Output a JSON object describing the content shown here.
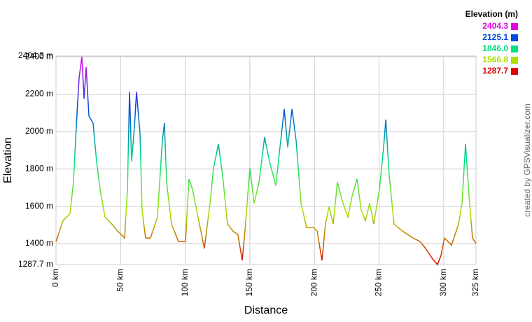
{
  "chart_data": {
    "type": "line",
    "x_label": "Distance",
    "y_label": "Elevation",
    "credit": "created by GPSVisualizer.com",
    "legend_title": "Elevation (m)",
    "color_scale": {
      "values": [
        2404.3,
        2125.1,
        {
          "value": 1846,
          "label": "1846.0"
        },
        1566.8,
        1287.7
      ],
      "colors": [
        "#e000e0",
        "#0048e0",
        "#00e080",
        "#a8e000",
        "#e00000"
      ]
    },
    "xlim": [
      0,
      325
    ],
    "ylim": [
      1287.7,
      2404.3
    ],
    "xticks": [
      {
        "value": 0,
        "label": "0 km"
      },
      {
        "value": 50,
        "label": "50 km"
      },
      {
        "value": 100,
        "label": "100 km"
      },
      {
        "value": 150,
        "label": "150 km"
      },
      {
        "value": 200,
        "label": "200 km"
      },
      {
        "value": 250,
        "label": "250 km"
      },
      {
        "value": 300,
        "label": "300 km"
      },
      {
        "value": 325,
        "label": "325 km"
      }
    ],
    "yticks": [
      {
        "value": 1287.7,
        "label": "1287.7 m"
      },
      {
        "value": 1400,
        "label": "1400 m"
      },
      {
        "value": 1600,
        "label": "1600 m"
      },
      {
        "value": 1800,
        "label": "1800 m"
      },
      {
        "value": 2000,
        "label": "2000 m"
      },
      {
        "value": 2200,
        "label": "2200 m"
      },
      {
        "value": 2400,
        "label": "2400 m"
      },
      {
        "value": 2404.3,
        "label": "2404.3 m"
      }
    ],
    "grid": true,
    "x": [
      0,
      5.4,
      10.8,
      13.5,
      16.3,
      17.9,
      20,
      21.7,
      23.3,
      25.5,
      28.7,
      31.4,
      34.1,
      37.9,
      43.3,
      47.7,
      53.1,
      55.3,
      56.9,
      58.5,
      60.7,
      62.3,
      65,
      66.6,
      69.3,
      73.1,
      78.5,
      82.3,
      83.9,
      85.6,
      89.4,
      94.8,
      100.2,
      102.9,
      105.6,
      111,
      114.8,
      119.2,
      121.9,
      125.7,
      128.9,
      132.7,
      137,
      140.8,
      144.1,
      146.2,
      150,
      153.3,
      157.1,
      161.4,
      165.2,
      170.1,
      173.3,
      176.6,
      179.3,
      182.6,
      185.8,
      189.6,
      193.9,
      199.3,
      202.1,
      205.8,
      208.5,
      211.3,
      214.5,
      217.7,
      222.1,
      225.9,
      229.1,
      232.9,
      236.2,
      239.4,
      242.7,
      245.9,
      250.3,
      253.5,
      255.2,
      257.8,
      261.6,
      268.1,
      276.3,
      281.7,
      286,
      291.4,
      295.2,
      297.9,
      300.6,
      306,
      311.5,
      314.2,
      316.9,
      319.6,
      322.3,
      325
    ],
    "series": [
      {
        "name": "Elevation",
        "values": [
          1411,
          1523,
          1560,
          1728,
          2101,
          2288,
          2400,
          2176,
          2344,
          2083,
          2045,
          1840,
          1691,
          1542,
          1504,
          1467,
          1430,
          1691,
          2213,
          1840,
          2027,
          2213,
          1990,
          1579,
          1430,
          1430,
          1542,
          1952,
          2045,
          1728,
          1504,
          1411,
          1411,
          1746,
          1691,
          1504,
          1374,
          1616,
          1803,
          1934,
          1766,
          1504,
          1467,
          1448,
          1310,
          1467,
          1803,
          1616,
          1728,
          1970,
          1840,
          1710,
          1915,
          2120,
          1915,
          2120,
          1952,
          1616,
          1486,
          1486,
          1467,
          1310,
          1504,
          1598,
          1504,
          1728,
          1616,
          1542,
          1654,
          1746,
          1579,
          1523,
          1616,
          1504,
          1691,
          1915,
          2064,
          1766,
          1504,
          1467,
          1430,
          1411,
          1374,
          1318,
          1288,
          1336,
          1430,
          1392,
          1504,
          1616,
          1934,
          1654,
          1430,
          1400
        ]
      }
    ]
  }
}
